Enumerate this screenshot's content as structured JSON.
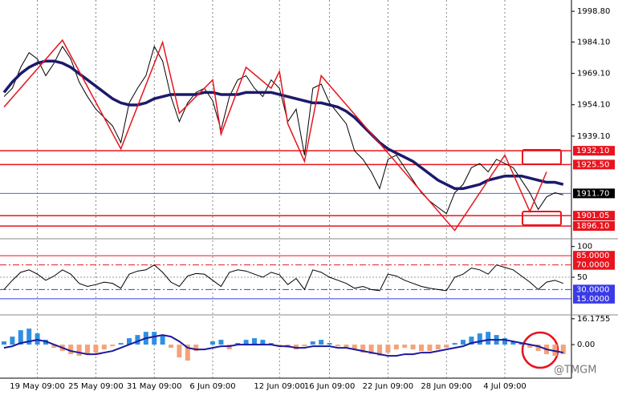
{
  "chart_data": [
    {
      "type": "line",
      "categories": [
        null,
        null,
        null,
        null,
        "19 May 09:00",
        null,
        null,
        null,
        null,
        null,
        null,
        "25 May 09:00",
        null,
        null,
        null,
        null,
        null,
        null,
        "31 May 09:00",
        null,
        null,
        null,
        null,
        null,
        null,
        "6 Jun 09:00",
        null,
        null,
        null,
        null,
        null,
        null,
        null,
        "12 Jun 09:00",
        null,
        null,
        null,
        null,
        null,
        "16 Jun 09:00",
        null,
        null,
        null,
        null,
        null,
        null,
        "22 Jun 09:00",
        null,
        null,
        null,
        null,
        null,
        null,
        "28 Jun 09:00",
        null,
        null,
        null,
        null,
        null,
        null,
        "4 Jul 09:00",
        null,
        null,
        null,
        null,
        null,
        null,
        null
      ],
      "series": [
        {
          "color": "#000000",
          "values": [
            1958,
            1962,
            1972,
            1979,
            1976,
            1968,
            1974,
            1982,
            1976,
            1965,
            1958,
            1952,
            1948,
            1944,
            1936,
            1955,
            1962,
            1968,
            1982,
            1975,
            1958,
            1946,
            1955,
            1960,
            1962,
            1956,
            1942,
            1958,
            1966,
            1968,
            1962,
            1958,
            1966,
            1962,
            1946,
            1952,
            1930,
            1962,
            1964,
            1955,
            1950,
            1945,
            1932,
            1928,
            1922,
            1914,
            1928,
            1930,
            1924,
            1918,
            1912,
            1908,
            1905,
            1902,
            1912,
            1916,
            1924,
            1926,
            1922,
            1928,
            1926,
            1924,
            1918,
            1912,
            1904,
            1910,
            1912,
            1911
          ]
        },
        {
          "color": "#1c1a6b",
          "values": [
            1960,
            1965,
            1969,
            1972,
            1974,
            1975,
            1975,
            1974,
            1972,
            1969,
            1966,
            1963,
            1960,
            1957,
            1955,
            1954,
            1954,
            1955,
            1957,
            1958,
            1959,
            1959,
            1959,
            1959,
            1960,
            1960,
            1959,
            1959,
            1959,
            1960,
            1960,
            1960,
            1960,
            1959,
            1958,
            1957,
            1956,
            1955,
            1955,
            1954,
            1953,
            1951,
            1948,
            1944,
            1940,
            1936,
            1933,
            1931,
            1929,
            1927,
            1924,
            1921,
            1918,
            1916,
            1914,
            1914,
            1915,
            1916,
            1918,
            1919,
            1920,
            1920,
            1920,
            1919,
            1918,
            1917,
            1917,
            1916
          ]
        }
      ],
      "zigzag": {
        "color": "#e8141e",
        "x": [
          0,
          7,
          14,
          19,
          21,
          25,
          26,
          29,
          32,
          33,
          34,
          36,
          38,
          54,
          60,
          63,
          65
        ],
        "values": [
          1953,
          1985,
          1933,
          1984,
          1950,
          1966,
          1940,
          1972,
          1962,
          1970,
          1945,
          1927,
          1968,
          1894,
          1930,
          1903,
          1922
        ]
      },
      "ylim": [
        1890,
        2004.2
      ],
      "yticks": [
        {
          "value": 1998.8,
          "label": "1998.80"
        },
        {
          "value": 1984.1,
          "label": "1984.10"
        },
        {
          "value": 1969.1,
          "label": "1969.10"
        },
        {
          "value": 1954.1,
          "label": "1954.10"
        },
        {
          "value": 1939.1,
          "label": "1939.10"
        }
      ],
      "levels": [
        {
          "value": 1932.1,
          "label": "1932.10",
          "color": "#e8141e"
        },
        {
          "value": 1925.5,
          "label": "1925.50",
          "color": "#e8141e"
        },
        {
          "value": 1911.7,
          "label": "1911.70",
          "color": "#3a6fd8",
          "label_color": "#000000"
        },
        {
          "value": 1901.05,
          "label": "1901.05",
          "color": "#e8141e"
        },
        {
          "value": 1896.1,
          "label": "1896.10",
          "color": "#e8141e"
        }
      ]
    },
    {
      "type": "line",
      "series": [
        {
          "color": "#000000",
          "values": [
            30,
            45,
            58,
            62,
            55,
            45,
            52,
            62,
            55,
            40,
            35,
            38,
            42,
            40,
            32,
            55,
            60,
            62,
            70,
            58,
            42,
            35,
            52,
            56,
            55,
            45,
            35,
            58,
            62,
            60,
            55,
            50,
            58,
            54,
            38,
            48,
            30,
            62,
            58,
            50,
            45,
            40,
            32,
            35,
            30,
            28,
            55,
            52,
            45,
            40,
            35,
            32,
            30,
            28,
            50,
            55,
            65,
            62,
            55,
            70,
            66,
            62,
            52,
            42,
            30,
            42,
            45,
            40
          ]
        }
      ],
      "ylim": [
        -10,
        110
      ],
      "yticks": [
        100,
        50
      ],
      "levels": [
        {
          "value": 85,
          "label": "85.0000",
          "color": "#e8141e"
        },
        {
          "value": 70,
          "label": "70.0000",
          "color": "#e8141e"
        },
        {
          "value": 30,
          "label": "30.0000",
          "color": "#3a3ae8"
        },
        {
          "value": 15,
          "label": "15.0000",
          "color": "#3a3ae8"
        }
      ]
    },
    {
      "type": "bar",
      "values": [
        2,
        5,
        9,
        10,
        7,
        3,
        -2,
        -4,
        -6,
        -7,
        -6,
        -5,
        -3,
        -1,
        1,
        4,
        6,
        8,
        8,
        6,
        -2,
        -8,
        -10,
        -4,
        0,
        2,
        3,
        -3,
        1,
        3,
        4,
        3,
        1,
        -1,
        -2,
        -3,
        -1,
        2,
        3,
        1,
        -1,
        -2,
        -3,
        -5,
        -6,
        -7,
        -5,
        -3,
        -2,
        -3,
        -4,
        -4,
        -3,
        -2,
        1,
        3,
        5,
        7,
        8,
        6,
        4,
        2,
        1,
        -2,
        -4,
        -6,
        -7,
        -6
      ],
      "colors": [
        "#2f8fe0",
        "#f4a27a"
      ],
      "series": [
        {
          "color": "#1c1a9b",
          "values": [
            -2,
            -1,
            1,
            2,
            3,
            2,
            0,
            -2,
            -4,
            -5,
            -6,
            -6,
            -5,
            -4,
            -2,
            0,
            2,
            4,
            5,
            6,
            5,
            2,
            -2,
            -3,
            -3,
            -2,
            -1,
            -1,
            0,
            0,
            0,
            0,
            0,
            -1,
            -1,
            -2,
            -2,
            -1,
            -1,
            -1,
            -2,
            -2,
            -3,
            -4,
            -5,
            -6,
            -7,
            -7,
            -6,
            -6,
            -5,
            -5,
            -4,
            -3,
            -2,
            -1,
            1,
            2,
            3,
            3,
            3,
            2,
            1,
            0,
            -1,
            -3,
            -4,
            -5
          ]
        }
      ],
      "ylim": [
        -20,
        17.6
      ],
      "yticks": [
        16.1755,
        {
          "value": 0,
          "label": "0.00"
        }
      ]
    }
  ],
  "watermark": "@TMGM"
}
